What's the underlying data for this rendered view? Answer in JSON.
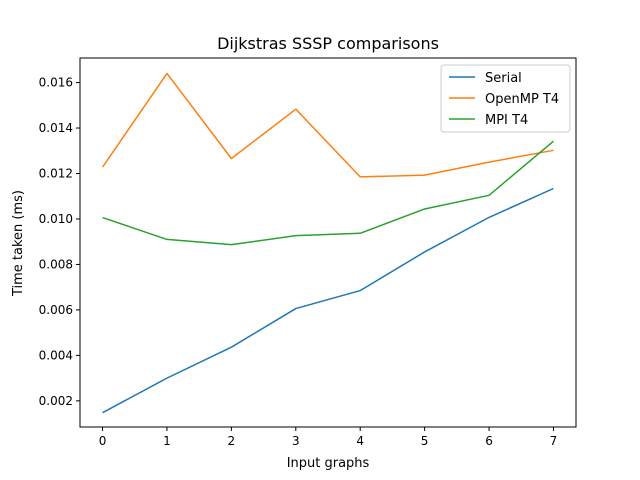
{
  "chart_data": {
    "type": "line",
    "title": "Dijkstras SSSP comparisons",
    "xlabel": "Input graphs",
    "ylabel": "Time taken (ms)",
    "x": [
      0,
      1,
      2,
      3,
      4,
      5,
      6,
      7
    ],
    "xlim": [
      -0.35,
      7.35
    ],
    "ylim": [
      0.00085,
      0.01708
    ],
    "xticks": [
      0,
      1,
      2,
      3,
      4,
      5,
      6,
      7
    ],
    "yticks": [
      0.002,
      0.004,
      0.006,
      0.008,
      0.01,
      0.012,
      0.014,
      0.016
    ],
    "ytick_labels": [
      "0.002",
      "0.004",
      "0.006",
      "0.008",
      "0.010",
      "0.012",
      "0.014",
      "0.016"
    ],
    "grid": false,
    "legend_position": "top-right",
    "series": [
      {
        "name": "Serial",
        "color": "#1f77b4",
        "values": [
          0.00148,
          0.003,
          0.00436,
          0.00606,
          0.00685,
          0.00855,
          0.01007,
          0.01134
        ]
      },
      {
        "name": "OpenMP T4",
        "color": "#ff7f0e",
        "values": [
          0.01228,
          0.0164,
          0.01266,
          0.01483,
          0.01185,
          0.01193,
          0.0125,
          0.01302
        ]
      },
      {
        "name": "MPI T4",
        "color": "#2ca02c",
        "values": [
          0.01006,
          0.0091,
          0.00887,
          0.00927,
          0.00937,
          0.01044,
          0.01104,
          0.01342
        ]
      }
    ]
  }
}
